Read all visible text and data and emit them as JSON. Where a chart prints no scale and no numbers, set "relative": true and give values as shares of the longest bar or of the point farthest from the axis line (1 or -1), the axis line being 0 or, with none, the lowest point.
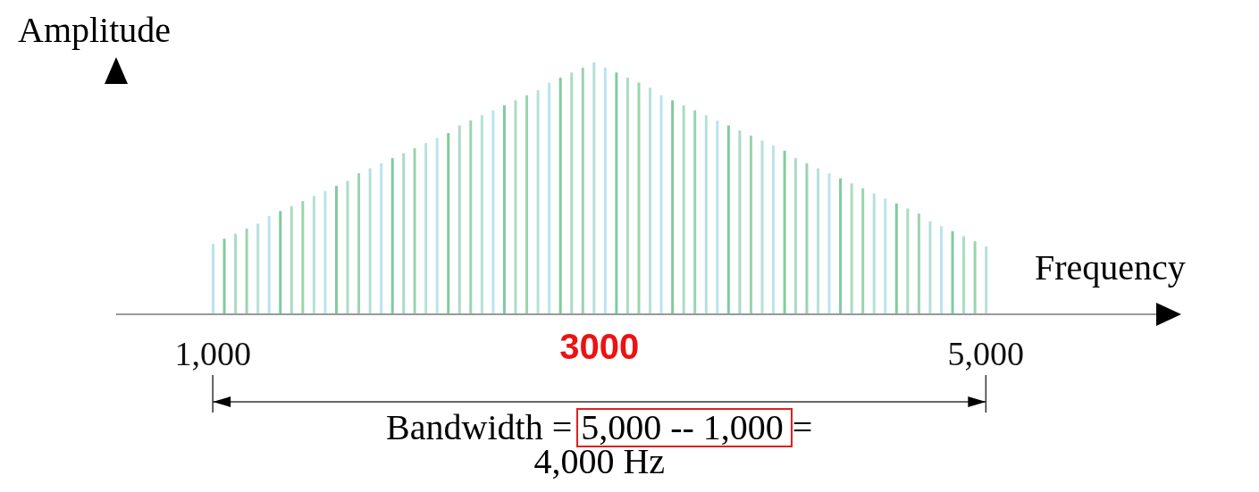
{
  "chart_data": {
    "type": "bar",
    "relative": true,
    "ylabel": "Amplitude",
    "xlabel": "Frequency",
    "x": [
      1000,
      1058,
      1116,
      1174,
      1232,
      1290,
      1348,
      1406,
      1464,
      1522,
      1580,
      1638,
      1696,
      1754,
      1812,
      1870,
      1928,
      1986,
      2043,
      2101,
      2159,
      2217,
      2275,
      2333,
      2391,
      2449,
      2507,
      2565,
      2623,
      2681,
      2739,
      2797,
      2855,
      2913,
      2971,
      3029,
      3087,
      3145,
      3203,
      3261,
      3319,
      3377,
      3435,
      3493,
      3551,
      3609,
      3667,
      3725,
      3783,
      3841,
      3899,
      3957,
      4014,
      4072,
      4130,
      4188,
      4246,
      4304,
      4362,
      4420,
      4478,
      4536,
      4594,
      4652,
      4710,
      4768,
      4826,
      4884,
      4942,
      5000
    ],
    "values": [
      0.28,
      0.3,
      0.32,
      0.34,
      0.36,
      0.39,
      0.41,
      0.43,
      0.45,
      0.47,
      0.49,
      0.51,
      0.53,
      0.56,
      0.58,
      0.6,
      0.62,
      0.64,
      0.66,
      0.68,
      0.7,
      0.72,
      0.75,
      0.77,
      0.79,
      0.81,
      0.83,
      0.85,
      0.87,
      0.89,
      0.92,
      0.94,
      0.96,
      0.98,
      1,
      0.98,
      0.96,
      0.94,
      0.92,
      0.9,
      0.87,
      0.85,
      0.83,
      0.81,
      0.79,
      0.77,
      0.75,
      0.73,
      0.71,
      0.69,
      0.67,
      0.65,
      0.62,
      0.6,
      0.58,
      0.56,
      0.54,
      0.52,
      0.5,
      0.48,
      0.46,
      0.44,
      0.42,
      0.4,
      0.37,
      0.35,
      0.33,
      0.31,
      0.29,
      0.27
    ],
    "colors": [
      "#b9e3f0",
      "#7fcc9c",
      "#a9dcc4",
      "#9ad4b0",
      "#b4e1d8",
      "#b9e3f0",
      "#7fcc9c",
      "#a9dcc4",
      "#9ad4b0",
      "#b4e1d8",
      "#b9e3f0",
      "#7fcc9c",
      "#a9dcc4",
      "#9ad4b0",
      "#b4e1d8",
      "#b9e3f0",
      "#7fcc9c",
      "#a9dcc4",
      "#9ad4b0",
      "#b4e1d8",
      "#b9e3f0",
      "#7fcc9c",
      "#a9dcc4",
      "#9ad4b0",
      "#b4e1d8",
      "#b9e3f0",
      "#7fcc9c",
      "#a9dcc4",
      "#9ad4b0",
      "#b4e1d8",
      "#b9e3f0",
      "#7fcc9c",
      "#a9dcc4",
      "#9ad4b0",
      "#b4e1d8",
      "#b9e3f0",
      "#7fcc9c",
      "#a9dcc4",
      "#9ad4b0",
      "#b4e1d8",
      "#b9e3f0",
      "#7fcc9c",
      "#a9dcc4",
      "#9ad4b0",
      "#b4e1d8",
      "#b9e3f0",
      "#7fcc9c",
      "#a9dcc4",
      "#9ad4b0",
      "#b4e1d8",
      "#b9e3f0",
      "#7fcc9c",
      "#a9dcc4",
      "#9ad4b0",
      "#b4e1d8",
      "#b9e3f0",
      "#7fcc9c",
      "#a9dcc4",
      "#9ad4b0",
      "#b4e1d8",
      "#b9e3f0",
      "#7fcc9c",
      "#a9dcc4",
      "#9ad4b0",
      "#b4e1d8",
      "#b9e3f0",
      "#7fcc9c",
      "#a9dcc4",
      "#9ad4b0",
      "#b4e1d8"
    ],
    "xlim": [
      500,
      5900
    ],
    "xticks": [
      {
        "value": 1000,
        "label": "1,000"
      },
      {
        "value": 5000,
        "label": "5,000"
      }
    ],
    "annotations": [
      "3000",
      "Bandwidth = 5,000 -- 1,000 = 4,000 Hz"
    ]
  }
}
